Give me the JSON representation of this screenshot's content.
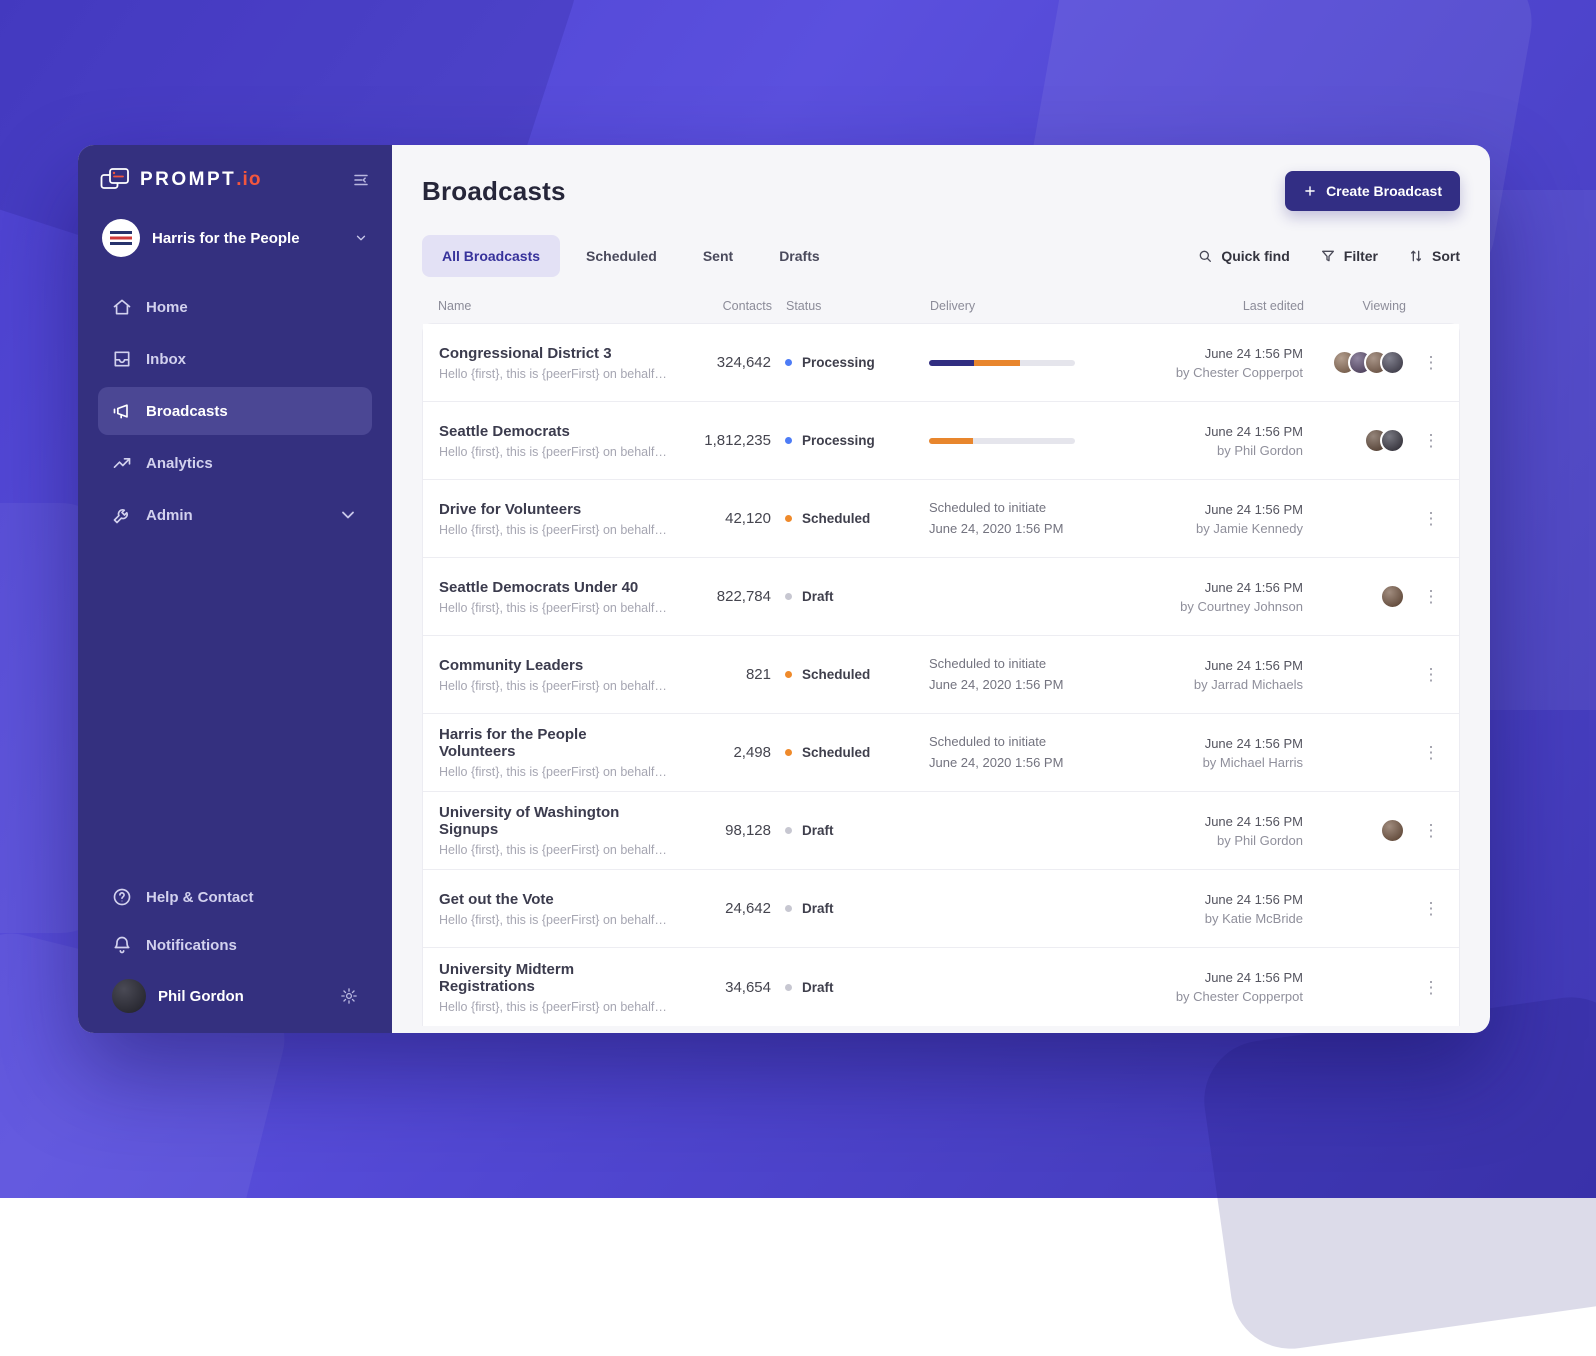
{
  "brand": {
    "name": "PROMPT",
    "suffix": ".io"
  },
  "sidebar": {
    "account": {
      "name": "Harris for the People"
    },
    "nav": [
      {
        "label": "Home",
        "icon": "home-icon",
        "active": false
      },
      {
        "label": "Inbox",
        "icon": "inbox-icon",
        "active": false
      },
      {
        "label": "Broadcasts",
        "icon": "megaphone-icon",
        "active": true
      },
      {
        "label": "Analytics",
        "icon": "analytics-icon",
        "active": false
      },
      {
        "label": "Admin",
        "icon": "wrench-icon",
        "active": false,
        "chevron": true
      }
    ],
    "footer_nav": [
      {
        "label": "Help & Contact",
        "icon": "help-icon"
      },
      {
        "label": "Notifications",
        "icon": "bell-icon"
      }
    ],
    "user": {
      "name": "Phil Gordon"
    }
  },
  "header": {
    "title": "Broadcasts",
    "create_button": "Create Broadcast"
  },
  "tabs": [
    {
      "label": "All Broadcasts",
      "active": true
    },
    {
      "label": "Scheduled",
      "active": false
    },
    {
      "label": "Sent",
      "active": false
    },
    {
      "label": "Drafts",
      "active": false
    }
  ],
  "toolbar": [
    {
      "label": "Quick find",
      "icon": "search-icon"
    },
    {
      "label": "Filter",
      "icon": "filter-icon"
    },
    {
      "label": "Sort",
      "icon": "sort-icon"
    }
  ],
  "status_colors": {
    "processing": "#4d7cf6",
    "scheduled": "#ef8a2b",
    "draft": "#c7c7d1"
  },
  "accent": "#312e81",
  "table": {
    "columns": [
      "Name",
      "Contacts",
      "Status",
      "Delivery",
      "Last edited",
      "Viewing"
    ],
    "rows": [
      {
        "name": "Congressional District 3",
        "subtitle": "Hello {first}, this is {peerFirst} on behalf of ...",
        "contacts": "324,642",
        "status": "Processing",
        "status_key": "processing",
        "delivery": {
          "type": "progress",
          "segments": [
            {
              "color": "#312e81",
              "pct": 31
            },
            {
              "color": "#e8862d",
              "pct": 31
            }
          ]
        },
        "last_edited": "June 24 1:56 PM",
        "edited_by": "by Chester Copperpot",
        "viewers": [
          "#8a6a52",
          "#53436b",
          "#7a5c49",
          "#3e3e52"
        ]
      },
      {
        "name": "Seattle Democrats",
        "subtitle": "Hello {first}, this is {peerFirst} on behalf of ...",
        "contacts": "1,812,235",
        "status": "Processing",
        "status_key": "processing",
        "delivery": {
          "type": "progress",
          "segments": [
            {
              "color": "#e8862d",
              "pct": 30
            }
          ]
        },
        "last_edited": "June 24 1:56 PM",
        "edited_by": "by Phil Gordon",
        "viewers": [
          "#5c4434",
          "#2f2f3d"
        ]
      },
      {
        "name": "Drive for Volunteers",
        "subtitle": "Hello {first}, this is {peerFirst} on behalf of ...",
        "contacts": "42,120",
        "status": "Scheduled",
        "status_key": "scheduled",
        "delivery": {
          "type": "text",
          "line1": "Scheduled to initiate",
          "line2": "June 24, 2020 1:56 PM"
        },
        "last_edited": "June 24 1:56 PM",
        "edited_by": "by Jamie Kennedy",
        "viewers": []
      },
      {
        "name": "Seattle Democrats Under 40",
        "subtitle": "Hello {first}, this is {peerFirst} on behalf of ...",
        "contacts": "822,784",
        "status": "Draft",
        "status_key": "draft",
        "delivery": {
          "type": "none"
        },
        "last_edited": "June 24 1:56 PM",
        "edited_by": "by Courtney Johnson",
        "viewers": [
          "#6e4f3a"
        ]
      },
      {
        "name": "Community Leaders",
        "subtitle": "Hello {first}, this is {peerFirst} on behalf of ...",
        "contacts": "821",
        "status": "Scheduled",
        "status_key": "scheduled",
        "delivery": {
          "type": "text",
          "line1": "Scheduled to initiate",
          "line2": "June 24, 2020 1:56 PM"
        },
        "last_edited": "June 24 1:56 PM",
        "edited_by": "by Jarrad Michaels",
        "viewers": []
      },
      {
        "name": "Harris for the People Volunteers",
        "subtitle": "Hello {first}, this is {peerFirst} on behalf of ...",
        "contacts": "2,498",
        "status": "Scheduled",
        "status_key": "scheduled",
        "delivery": {
          "type": "text",
          "line1": "Scheduled to initiate",
          "line2": "June 24, 2020 1:56 PM"
        },
        "last_edited": "June 24 1:56 PM",
        "edited_by": "by Michael Harris",
        "viewers": []
      },
      {
        "name": "University of Washington Signups",
        "subtitle": "Hello {first}, this is {peerFirst} on behalf of ...",
        "contacts": "98,128",
        "status": "Draft",
        "status_key": "draft",
        "delivery": {
          "type": "none"
        },
        "last_edited": "June 24 1:56 PM",
        "edited_by": "by Phil Gordon",
        "viewers": [
          "#6e4f3a"
        ]
      },
      {
        "name": "Get out the Vote",
        "subtitle": "Hello {first}, this is {peerFirst} on behalf of ...",
        "contacts": "24,642",
        "status": "Draft",
        "status_key": "draft",
        "delivery": {
          "type": "none"
        },
        "last_edited": "June 24 1:56 PM",
        "edited_by": "by Katie McBride",
        "viewers": []
      },
      {
        "name": "University Midterm Registrations",
        "subtitle": "Hello {first}, this is {peerFirst} on behalf of ...",
        "contacts": "34,654",
        "status": "Draft",
        "status_key": "draft",
        "delivery": {
          "type": "none"
        },
        "last_edited": "June 24 1:56 PM",
        "edited_by": "by Chester Copperpot",
        "viewers": []
      }
    ]
  }
}
